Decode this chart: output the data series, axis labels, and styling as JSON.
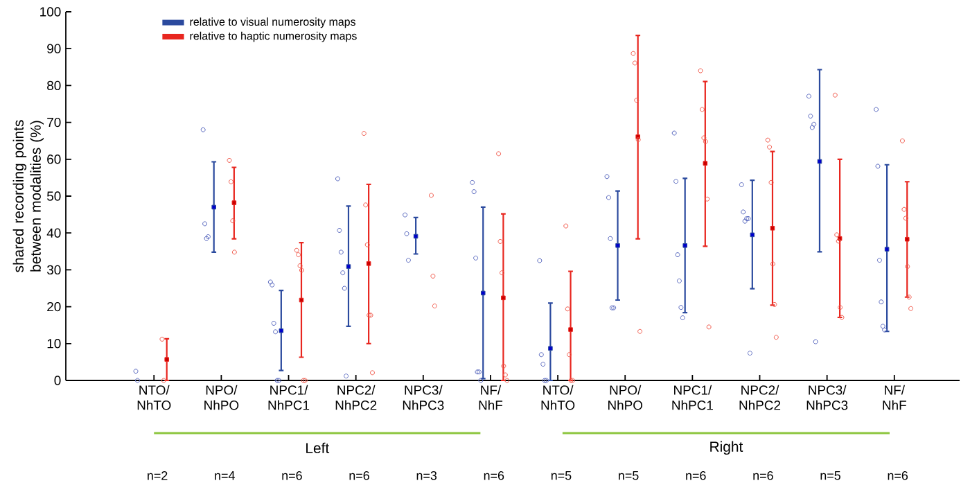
{
  "chart_data": {
    "type": "scatter",
    "ylabel": "shared recording points between modalities (%)",
    "categories": [
      "NTO/ NhTO",
      "NPO/ NhPO",
      "NPC1/ NhPC1",
      "NPC2/ NhPC2",
      "NPC3/ NhPC3",
      "NF/ NhF",
      "NTO/ NhTO",
      "NPO/ NhPO",
      "NPC1/ NhPC1",
      "NPC2/ NhPC2",
      "NPC3/ NhPC3",
      "NF/ NhF"
    ],
    "ylim": [
      0,
      100
    ],
    "yticks": [
      0,
      10,
      20,
      30,
      40,
      50,
      60,
      70,
      80,
      90,
      100
    ],
    "legend": "top left",
    "annotations": [
      "Left",
      "Right",
      "n=2",
      "n=4",
      "n=6",
      "n=6",
      "n=3",
      "n=6",
      "n=5",
      "n=5",
      "n=6",
      "n=6",
      "n=5",
      "n=6"
    ],
    "series": [
      {
        "name": "relative to visual numerosity maps",
        "marker": "square",
        "color": "#2b4a9e",
        "values": [
          null,
          47.0,
          13.5,
          30.9,
          39.1,
          23.7,
          8.7,
          36.6,
          36.6,
          39.5,
          59.4,
          35.6
        ],
        "errors": [
          null,
          [
            34.8,
            59.3
          ],
          [
            2.7,
            24.4
          ],
          [
            14.7,
            47.3
          ],
          [
            34.3,
            44.2
          ],
          [
            0.5,
            47.0
          ],
          [
            0,
            21.0
          ],
          [
            21.8,
            51.4
          ],
          [
            18.4,
            54.8
          ],
          [
            24.9,
            54.3
          ],
          [
            34.9,
            84.3
          ],
          [
            13.3,
            58.5
          ]
        ]
      },
      {
        "name": "relative to haptic numerosity maps",
        "marker": "square",
        "color": "#e8261f",
        "values": [
          5.7,
          48.2,
          21.8,
          31.7,
          null,
          22.4,
          13.8,
          66.1,
          58.9,
          41.3,
          38.5,
          38.3
        ],
        "errors": [
          [
            0,
            11.3
          ],
          [
            38.4,
            57.8
          ],
          [
            6.3,
            37.4
          ],
          [
            10.0,
            53.2
          ],
          null,
          [
            0,
            45.2
          ],
          [
            0,
            29.6
          ],
          [
            38.4,
            93.6
          ],
          [
            36.4,
            81.1
          ],
          [
            20.4,
            62.1
          ],
          [
            17.1,
            60.0
          ],
          [
            22.6,
            53.9
          ]
        ]
      },
      {
        "marker": "circle",
        "color": "#5565bd",
        "values": [
          2.5,
          68.0,
          26.7,
          54.7,
          44.9,
          53.7,
          32.5,
          55.3,
          67.1,
          53.1,
          77.1,
          73.5
        ]
      },
      {
        "marker": "circle",
        "color": "#5565bd",
        "values": [
          0,
          42.5,
          25.9,
          40.7,
          39.8,
          51.2,
          7.0,
          49.6,
          54.0,
          45.7,
          71.7,
          58.1
        ]
      },
      {
        "marker": "circle",
        "color": "#5565bd",
        "values": [
          null,
          38.5,
          15.5,
          34.8,
          32.6,
          33.2,
          4.4,
          38.5,
          34.1,
          43.2,
          68.6,
          32.6
        ]
      },
      {
        "marker": "circle",
        "color": "#5565bd",
        "values": [
          null,
          39.0,
          13.2,
          29.2,
          null,
          2.3,
          0,
          19.7,
          27.0,
          43.9,
          69.5,
          21.3
        ]
      },
      {
        "marker": "circle",
        "color": "#5565bd",
        "values": [
          null,
          null,
          0,
          25.0,
          null,
          2.3,
          0,
          19.7,
          19.8,
          43.9,
          10.5,
          14.7
        ]
      },
      {
        "marker": "circle",
        "color": "#5565bd",
        "values": [
          null,
          null,
          0,
          1.2,
          null,
          0,
          null,
          null,
          17.0,
          7.4,
          null,
          13.7
        ]
      },
      {
        "marker": "circle",
        "color": "#f0584a",
        "values": [
          11.2,
          59.7,
          35.3,
          67.0,
          50.2,
          61.5,
          41.9,
          88.7,
          84.0,
          65.2,
          77.4,
          65.0
        ]
      },
      {
        "marker": "circle",
        "color": "#f0584a",
        "values": [
          0,
          53.9,
          34.1,
          47.6,
          28.3,
          37.7,
          19.4,
          86.1,
          73.5,
          63.3,
          39.5,
          46.4
        ]
      },
      {
        "marker": "circle",
        "color": "#f0584a",
        "values": [
          null,
          43.3,
          31.1,
          36.8,
          20.2,
          29.2,
          7.0,
          76.0,
          65.8,
          53.7,
          37.8,
          44.0
        ]
      },
      {
        "marker": "circle",
        "color": "#f0584a",
        "values": [
          null,
          34.8,
          29.9,
          17.7,
          null,
          3.9,
          0,
          65.3,
          64.8,
          31.6,
          19.8,
          30.9
        ]
      },
      {
        "marker": "circle",
        "color": "#f0584a",
        "values": [
          null,
          null,
          0,
          17.7,
          null,
          1.5,
          0,
          13.3,
          49.2,
          20.6,
          17.1,
          22.6
        ]
      },
      {
        "marker": "circle",
        "color": "#f0584a",
        "values": [
          null,
          null,
          0,
          2.1,
          null,
          0,
          null,
          null,
          14.5,
          11.7,
          null,
          19.5
        ]
      }
    ]
  }
}
